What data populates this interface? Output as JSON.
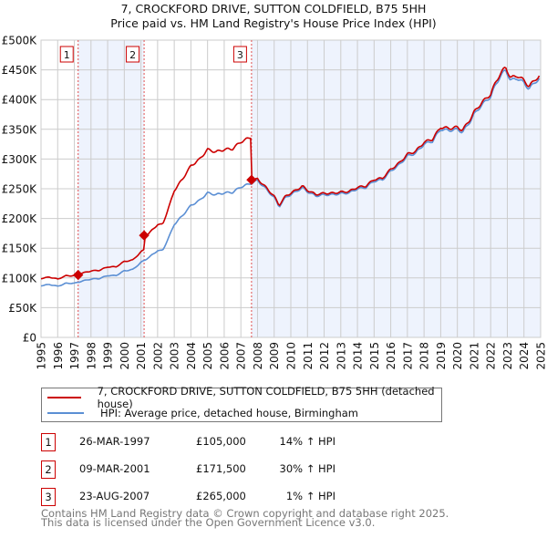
{
  "title": "7, CROCKFORD DRIVE, SUTTON COLDFIELD, B75 5HH",
  "subtitle": "Price paid vs. HM Land Registry's House Price Index (HPI)",
  "chart_data": {
    "type": "line",
    "title": "7, CROCKFORD DRIVE, SUTTON COLDFIELD, B75 5HH",
    "subtitle": "Price paid vs. HM Land Registry's House Price Index (HPI)",
    "xlim": [
      1995,
      2025
    ],
    "ylim": [
      0,
      500000
    ],
    "x_ticks": [
      "1995",
      "1996",
      "1997",
      "1998",
      "1999",
      "2000",
      "2001",
      "2002",
      "2003",
      "2004",
      "2005",
      "2006",
      "2007",
      "2008",
      "2009",
      "2010",
      "2011",
      "2012",
      "2013",
      "2014",
      "2015",
      "2016",
      "2017",
      "2018",
      "2019",
      "2020",
      "2021",
      "2022",
      "2023",
      "2024",
      "2025"
    ],
    "y_ticks": [
      {
        "v": 0,
        "label": "£0"
      },
      {
        "v": 50000,
        "label": "£50K"
      },
      {
        "v": 100000,
        "label": "£100K"
      },
      {
        "v": 150000,
        "label": "£150K"
      },
      {
        "v": 200000,
        "label": "£200K"
      },
      {
        "v": 250000,
        "label": "£250K"
      },
      {
        "v": 300000,
        "label": "£300K"
      },
      {
        "v": 350000,
        "label": "£350K"
      },
      {
        "v": 400000,
        "label": "£400K"
      },
      {
        "v": 450000,
        "label": "£450K"
      },
      {
        "v": 500000,
        "label": "£500K"
      }
    ],
    "grid": true,
    "colors": {
      "property": "#cc0000",
      "hpi": "#5b8fd4",
      "shade": "#eef3fd"
    },
    "hpi_series": {
      "name": "HPI: Average price, detached house, Birmingham",
      "x": [
        1995,
        1995.5,
        1996,
        1996.5,
        1997,
        1997.5,
        1998,
        1998.5,
        1999,
        1999.5,
        2000,
        2000.5,
        2001,
        2001.5,
        2002,
        2002.3,
        2002.7,
        2003,
        2003.5,
        2004,
        2004.5,
        2005,
        2005.5,
        2006,
        2006.5,
        2007,
        2007.5,
        2008,
        2008.5,
        2009,
        2009.3,
        2009.7,
        2010,
        2010.7,
        2011,
        2011.5,
        2012,
        2012.5,
        2013,
        2013.5,
        2014,
        2014.5,
        2015,
        2015.5,
        2016,
        2016.5,
        2017,
        2017.5,
        2018,
        2018.5,
        2019,
        2019.5,
        2020,
        2020.3,
        2020.7,
        2021,
        2021.5,
        2022,
        2022.3,
        2022.6,
        2022.9,
        2023.2,
        2023.6,
        2024,
        2024.3,
        2024.7,
        2024.95
      ],
      "y": [
        87000,
        89000,
        86000,
        91000,
        91000,
        95000,
        98000,
        99000,
        104000,
        104000,
        112000,
        114000,
        126000,
        135000,
        146000,
        146000,
        170000,
        190000,
        205000,
        222000,
        230000,
        243000,
        240000,
        243000,
        244000,
        253000,
        258000,
        264000,
        250000,
        235000,
        220000,
        236000,
        240000,
        252000,
        245000,
        238000,
        240000,
        240000,
        242000,
        243000,
        250000,
        252000,
        263000,
        265000,
        280000,
        290000,
        305000,
        310000,
        325000,
        330000,
        350000,
        348000,
        350000,
        345000,
        360000,
        375000,
        392000,
        405000,
        425000,
        440000,
        450000,
        432000,
        436000,
        428000,
        418000,
        430000,
        436000
      ]
    },
    "property_series": {
      "name": "7, CROCKFORD DRIVE, SUTTON COLDFIELD, B75 5HH (detached house)",
      "segments": [
        {
          "from": 1995,
          "to": 2001.19,
          "hpi_ratio": 1.14
        },
        {
          "from": 2001.19,
          "to": 2007.64,
          "hpi_ratio": 1.3
        },
        {
          "from": 2007.64,
          "to": 2025,
          "hpi_ratio": 1.01
        }
      ]
    },
    "sales": [
      {
        "n": "1",
        "x": 1997.23,
        "y": 105000,
        "date": "26-MAR-1997",
        "price": "£105,000",
        "hpi": "14% ↑ HPI"
      },
      {
        "n": "2",
        "x": 2001.19,
        "y": 171500,
        "date": "09-MAR-2001",
        "price": "£171,500",
        "hpi": "30% ↑ HPI"
      },
      {
        "n": "3",
        "x": 2007.64,
        "y": 265000,
        "date": "23-AUG-2007",
        "price": "£265,000",
        "hpi": "1% ↑ HPI"
      }
    ],
    "legend_placement": "bottom"
  },
  "legend": {
    "property": "7, CROCKFORD DRIVE, SUTTON COLDFIELD, B75 5HH (detached house)",
    "hpi": "HPI: Average price, detached house, Birmingham"
  },
  "footer": {
    "line1": "Contains HM Land Registry data © Crown copyright and database right 2025.",
    "line2": "This data is licensed under the Open Government Licence v3.0."
  }
}
